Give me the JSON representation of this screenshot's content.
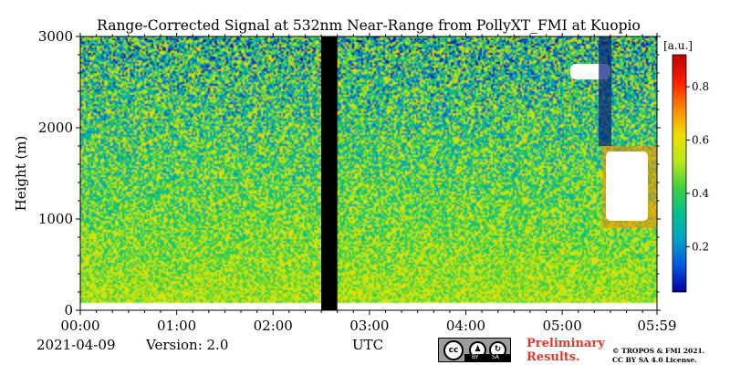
{
  "chart_data": {
    "type": "heatmap",
    "title": "Range-Corrected Signal at 532nm Near-Range from PollyXT_FMI at Kuopio",
    "xlabel": "UTC",
    "ylabel": "Height (m)",
    "xlim": [
      0,
      359
    ],
    "ylim": [
      0,
      3000
    ],
    "x_ticks": [
      {
        "value": 0,
        "label": "00:00"
      },
      {
        "value": 60,
        "label": "01:00"
      },
      {
        "value": 120,
        "label": "02:00"
      },
      {
        "value": 180,
        "label": "03:00"
      },
      {
        "value": 240,
        "label": "04:00"
      },
      {
        "value": 300,
        "label": "05:00"
      },
      {
        "value": 359,
        "label": "05:59"
      }
    ],
    "y_ticks": [
      {
        "value": 0,
        "label": "0"
      },
      {
        "value": 1000,
        "label": "1000"
      },
      {
        "value": 2000,
        "label": "2000"
      },
      {
        "value": 3000,
        "label": "3000"
      }
    ],
    "colorbar": {
      "label": "[a.u.]",
      "range": [
        0.03,
        0.92
      ],
      "ticks": [
        {
          "value": 0.2,
          "label": "0.2"
        },
        {
          "value": 0.4,
          "label": "0.4"
        },
        {
          "value": 0.6,
          "label": "0.6"
        },
        {
          "value": 0.8,
          "label": "0.8"
        }
      ],
      "colormap": [
        "#0000a0",
        "#0055e0",
        "#00a0c8",
        "#00c090",
        "#40d040",
        "#b8e818",
        "#f0e000",
        "#ff8c00",
        "#ff2000",
        "#c00000"
      ]
    },
    "no_data_gap": {
      "start_min": 150,
      "end_min": 160,
      "color": "#000000"
    },
    "overlap_blind_zone_height_m": 70,
    "clouds": [
      {
        "type": "cloud-top",
        "start_min": 305,
        "end_min": 330,
        "base_m": 2530,
        "top_m": 2700
      },
      {
        "type": "dense-cloud",
        "start_min": 325,
        "end_min": 359,
        "base_m": 900,
        "top_m": 1800
      }
    ]
  },
  "footer": {
    "date": "2021-04-09",
    "version": "Version: 2.0",
    "xlabel_footer": "UTC",
    "cc_license": {
      "cc": "cc",
      "by": "BY",
      "sa": "SA"
    },
    "preliminary_line1": "Preliminary",
    "preliminary_line2": "Results.",
    "copyright_line1": "© TROPOS & FMI 2021.",
    "copyright_line2": "CC BY SA 4.0 License."
  }
}
